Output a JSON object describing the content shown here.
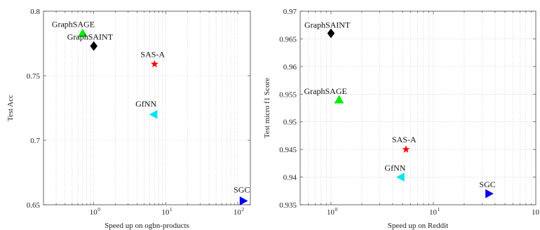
{
  "chart_data": [
    {
      "type": "scatter",
      "xscale": "log",
      "xlim": [
        0.2,
        150
      ],
      "ylim": [
        0.65,
        0.8
      ],
      "xticks": [
        1,
        10,
        100
      ],
      "xtick_labels": [
        "10",
        "10",
        "10"
      ],
      "xtick_exponents": [
        "0",
        "1",
        "2"
      ],
      "yticks": [
        0.65,
        0.7,
        0.75,
        0.8
      ],
      "ytick_labels": [
        "0.65",
        "0.7",
        "0.75",
        "0.8"
      ],
      "xlabel": "Speed up on ogbn-products",
      "ylabel": "Test Acc",
      "grid": true,
      "points": [
        {
          "label": "GraphSAGE",
          "x": 0.7,
          "y": 0.783,
          "marker": "triangle-up",
          "color": "#00ee00"
        },
        {
          "label": "GraphSAINT",
          "x": 1.0,
          "y": 0.773,
          "marker": "diamond",
          "color": "#000000"
        },
        {
          "label": "SAS-A",
          "x": 7.0,
          "y": 0.759,
          "marker": "star",
          "color": "#ff0000"
        },
        {
          "label": "GfNN",
          "x": 6.8,
          "y": 0.72,
          "marker": "triangle-left",
          "color": "#00e5ee"
        },
        {
          "label": "SGC",
          "x": 120,
          "y": 0.653,
          "marker": "triangle-right",
          "color": "#0000ee"
        }
      ]
    },
    {
      "type": "scatter",
      "xscale": "log",
      "xlim": [
        0.5,
        100
      ],
      "ylim": [
        0.935,
        0.97
      ],
      "xticks": [
        1,
        10,
        100
      ],
      "xtick_labels": [
        "10",
        "10",
        "10"
      ],
      "xtick_exponents": [
        "0",
        "1",
        "2"
      ],
      "yticks": [
        0.935,
        0.94,
        0.945,
        0.95,
        0.955,
        0.96,
        0.965,
        0.97
      ],
      "ytick_labels": [
        "0.935",
        "0.94",
        "0.945",
        "0.95",
        "0.955",
        "0.96",
        "0.965",
        "0.97"
      ],
      "xlabel": "Speed up on Reddit",
      "ylabel": "Test micro f1 Score",
      "grid": true,
      "points": [
        {
          "label": "GraphSAINT",
          "x": 1.0,
          "y": 0.966,
          "marker": "diamond",
          "color": "#000000"
        },
        {
          "label": "GraphSAGE",
          "x": 1.2,
          "y": 0.954,
          "marker": "triangle-up",
          "color": "#00ee00"
        },
        {
          "label": "SAS-A",
          "x": 5.4,
          "y": 0.945,
          "marker": "star",
          "color": "#ff0000"
        },
        {
          "label": "GfNN",
          "x": 4.8,
          "y": 0.94,
          "marker": "triangle-left",
          "color": "#00e5ee"
        },
        {
          "label": "SGC",
          "x": 35,
          "y": 0.937,
          "marker": "triangle-right",
          "color": "#0000ee"
        }
      ]
    }
  ]
}
